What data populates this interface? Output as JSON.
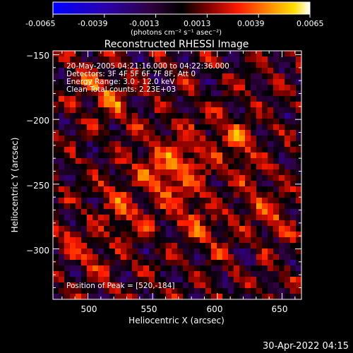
{
  "colorbar": {
    "ticks": [
      "-0.0065",
      "-0.0039",
      "-0.0013",
      "0.0013",
      "0.0039",
      "0.0065"
    ],
    "tick_values": [
      -0.0065,
      -0.0039,
      -0.0013,
      0.0013,
      0.0039,
      0.0065
    ],
    "unit": "(photons cm⁻² s⁻¹ asec⁻²)",
    "colors": [
      "#0000ff",
      "#2a00b0",
      "#300040",
      "#000000",
      "#7a0000",
      "#ff1a00",
      "#ff8a00",
      "#ffe000",
      "#ffffff"
    ]
  },
  "annotations": {
    "time": "20-May-2005 04:21:16.000 to 04:22:36.000",
    "detectors": "Detectors: 3F 4F 5F 6F 7F 8F, Att 0",
    "energy": "Energy Range: 3.0 - 12.0 keV",
    "method": "Clean     Total counts: 2.23E+03",
    "peak": "Position of Peak = [520,-184]"
  },
  "footer": {
    "timestamp": "30-Apr-2022 04:15"
  },
  "chart_data": {
    "type": "heatmap",
    "title": "Reconstructed RHESSI Image",
    "xlabel": "Heliocentric X (arcsec)",
    "ylabel": "Heliocentric Y (arcsec)",
    "xlim": [
      473,
      665
    ],
    "ylim": [
      -339,
      -147
    ],
    "x_ticks": [
      500,
      550,
      600,
      650
    ],
    "x_tick_labels": [
      "500",
      "550",
      "600",
      "650"
    ],
    "y_ticks": [
      -150,
      -200,
      -250,
      -300
    ],
    "y_tick_labels": [
      "−150",
      "−200",
      "−250",
      "−300"
    ],
    "value_range": [
      -0.0065,
      0.0065
    ],
    "peak_position": [
      520,
      -184
    ],
    "grid": false
  }
}
